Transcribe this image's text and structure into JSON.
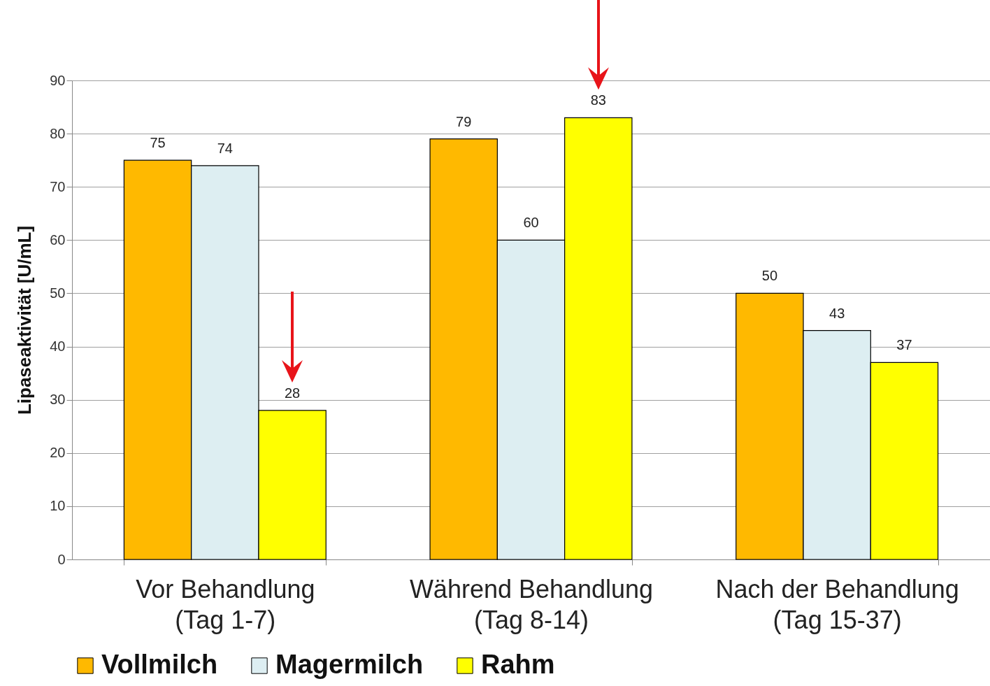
{
  "chart_data": {
    "type": "bar",
    "ylabel": "Lipaseaktivität [U/mL]",
    "categories": [
      "Vor Behandlung\n(Tag 1-7)",
      "Während Behandlung\n(Tag 8-14)",
      "Nach der Behandlung\n(Tag 15-37)"
    ],
    "series": [
      {
        "name": "Vollmilch",
        "color": "#ffb900",
        "values": [
          75,
          79,
          50
        ]
      },
      {
        "name": "Magermilch",
        "color": "#ddeef2",
        "values": [
          74,
          60,
          43
        ]
      },
      {
        "name": "Rahm",
        "color": "#ffff00",
        "values": [
          28,
          83,
          37
        ]
      }
    ],
    "ylim": [
      0,
      90
    ],
    "yticks": [
      0,
      10,
      20,
      30,
      40,
      50,
      60,
      70,
      80,
      90
    ],
    "grid": "y",
    "legend": "bottom",
    "data_labels": true
  }
}
